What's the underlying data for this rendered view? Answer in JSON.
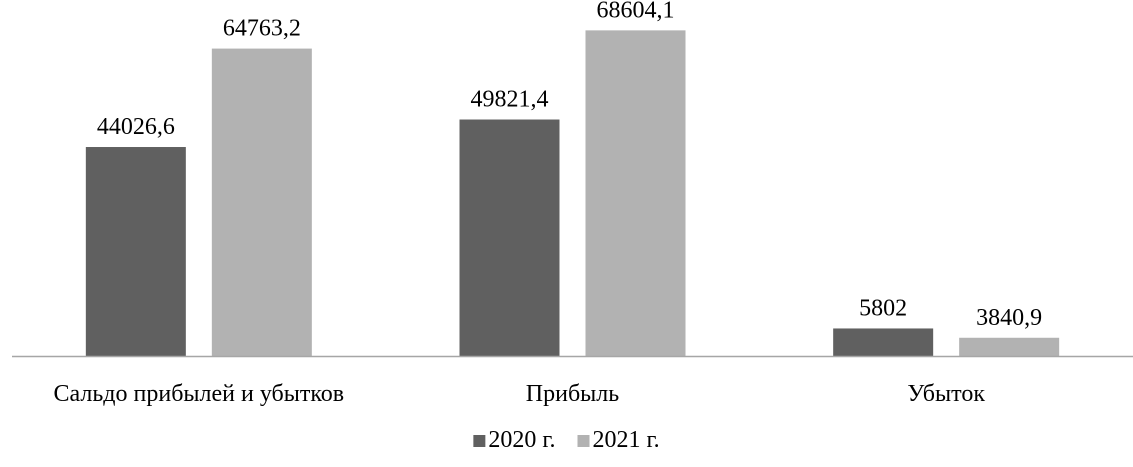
{
  "chart_data": {
    "type": "bar",
    "categories": [
      "Сальдо прибылей и убытков",
      "Прибыль",
      "Убыток"
    ],
    "series": [
      {
        "name": "2020 г.",
        "color": "#606060",
        "values": [
          44026.6,
          49821.4,
          5802
        ],
        "labels": [
          "44026,6",
          "49821,4",
          "5802"
        ]
      },
      {
        "name": "2021 г.",
        "color": "#b2b2b2",
        "values": [
          64763.2,
          68604.1,
          3840.9
        ],
        "labels": [
          "64763,2",
          "68604,1",
          "3840,9"
        ]
      }
    ],
    "ylim": [
      0,
      75000
    ],
    "grid": false,
    "legend_position": "bottom",
    "axis_color": "#a6a6a6"
  }
}
